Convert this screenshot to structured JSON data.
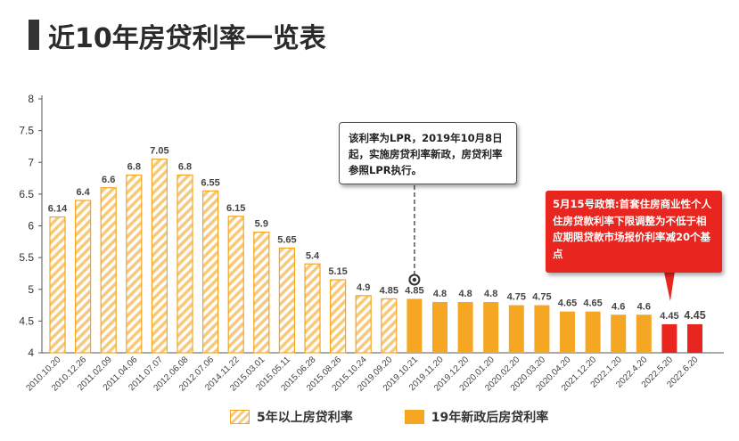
{
  "page": {
    "title": "近10年房贷利率一览表"
  },
  "callouts": {
    "lpr_note": "该利率为LPR，2019年10月8日起，实施房贷利率新政，房贷利率参照LPR执行。",
    "policy_note": "5月15号政策:首套住房商业性个人住房贷款利率下限调整为不低于相应期限贷款市场报价利率减20个基点"
  },
  "legend": {
    "hatched_label": "5年以上房贷利率",
    "solid_label": "19年新政后房贷利率"
  },
  "colors": {
    "bar_orange": "#f5a623",
    "bar_hatch_light": "#f8c97a",
    "bar_red": "#e8261f",
    "highlight_label": "#e8261f"
  },
  "chart_data": {
    "type": "bar",
    "ylim": [
      4,
      8
    ],
    "yticks": [
      4,
      4.5,
      5,
      5.5,
      6,
      6.5,
      7,
      7.5,
      8
    ],
    "grid": false,
    "legend_position": "bottom",
    "categories": [
      "2010.10.20",
      "2010.12.26",
      "2011.02.09",
      "2011.04.06",
      "2011.07.07",
      "2012.06.08",
      "2012.07.06",
      "2014.11.22",
      "2015.03.01",
      "2015.05.11",
      "2015.06.28",
      "2015.08.26",
      "2015.10.24",
      "2019.09.20",
      "2019.10.21",
      "2019.11.20",
      "2019.12.20",
      "2020.01.20",
      "2020.02.20",
      "2020.03.20",
      "2020.04.20",
      "2021.12.20",
      "2022.1.20",
      "2022.4.20",
      "2022.5.20",
      "2022.6.20"
    ],
    "values": [
      6.14,
      6.4,
      6.6,
      6.8,
      7.05,
      6.8,
      6.55,
      6.15,
      5.9,
      5.65,
      5.4,
      5.15,
      4.9,
      4.85,
      4.85,
      4.8,
      4.8,
      4.8,
      4.75,
      4.75,
      4.65,
      4.65,
      4.6,
      4.6,
      4.45,
      4.45
    ],
    "series_type": [
      "hatched",
      "hatched",
      "hatched",
      "hatched",
      "hatched",
      "hatched",
      "hatched",
      "hatched",
      "hatched",
      "hatched",
      "hatched",
      "hatched",
      "hatched",
      "hatched",
      "solid",
      "solid",
      "solid",
      "solid",
      "solid",
      "solid",
      "solid",
      "solid",
      "solid",
      "solid",
      "red",
      "red"
    ],
    "highlight_labels": [
      25
    ]
  }
}
